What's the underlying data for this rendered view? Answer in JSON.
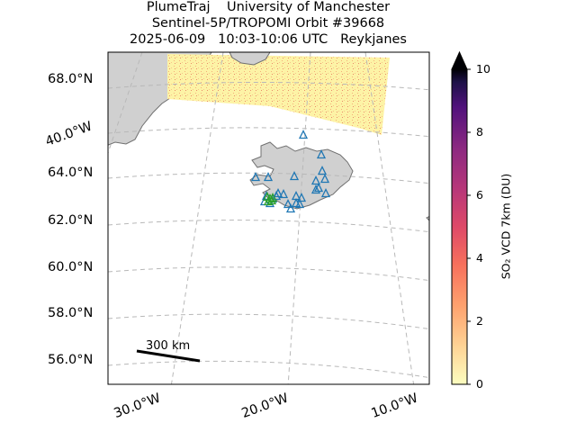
{
  "title": {
    "line1": "PlumeTraj    University of Manchester",
    "line2": "Sentinel-5P/TROPOMI Orbit #39668",
    "line3": "2025-06-09   10:03-10:06 UTC   Reykjanes"
  },
  "lat_labels": [
    "68.0°N",
    "64.0°N",
    "62.0°N",
    "60.0°N",
    "58.0°N",
    "56.0°N"
  ],
  "lon_labels": [
    "30.0°W",
    "20.0°W",
    "10.0°W"
  ],
  "lon_label_left": "40.0°W",
  "scale_bar": {
    "label": "300 km"
  },
  "colorbar": {
    "label": "SO₂ VCD 7km (DU)",
    "ticks": [
      "0",
      "2",
      "4",
      "6",
      "8",
      "10"
    ],
    "min": 0,
    "max": 10,
    "colormap": "magma_r"
  },
  "colors": {
    "land": "#d0d0d0",
    "coast": "#707070",
    "grid": "#b8b8b8",
    "swath": "#fdf3a6",
    "volcano_marker": "#1f77b4",
    "highlight_marker": "#2ca02c"
  },
  "volcano_markers_count": 24,
  "highlight_volcano_count": 5
}
